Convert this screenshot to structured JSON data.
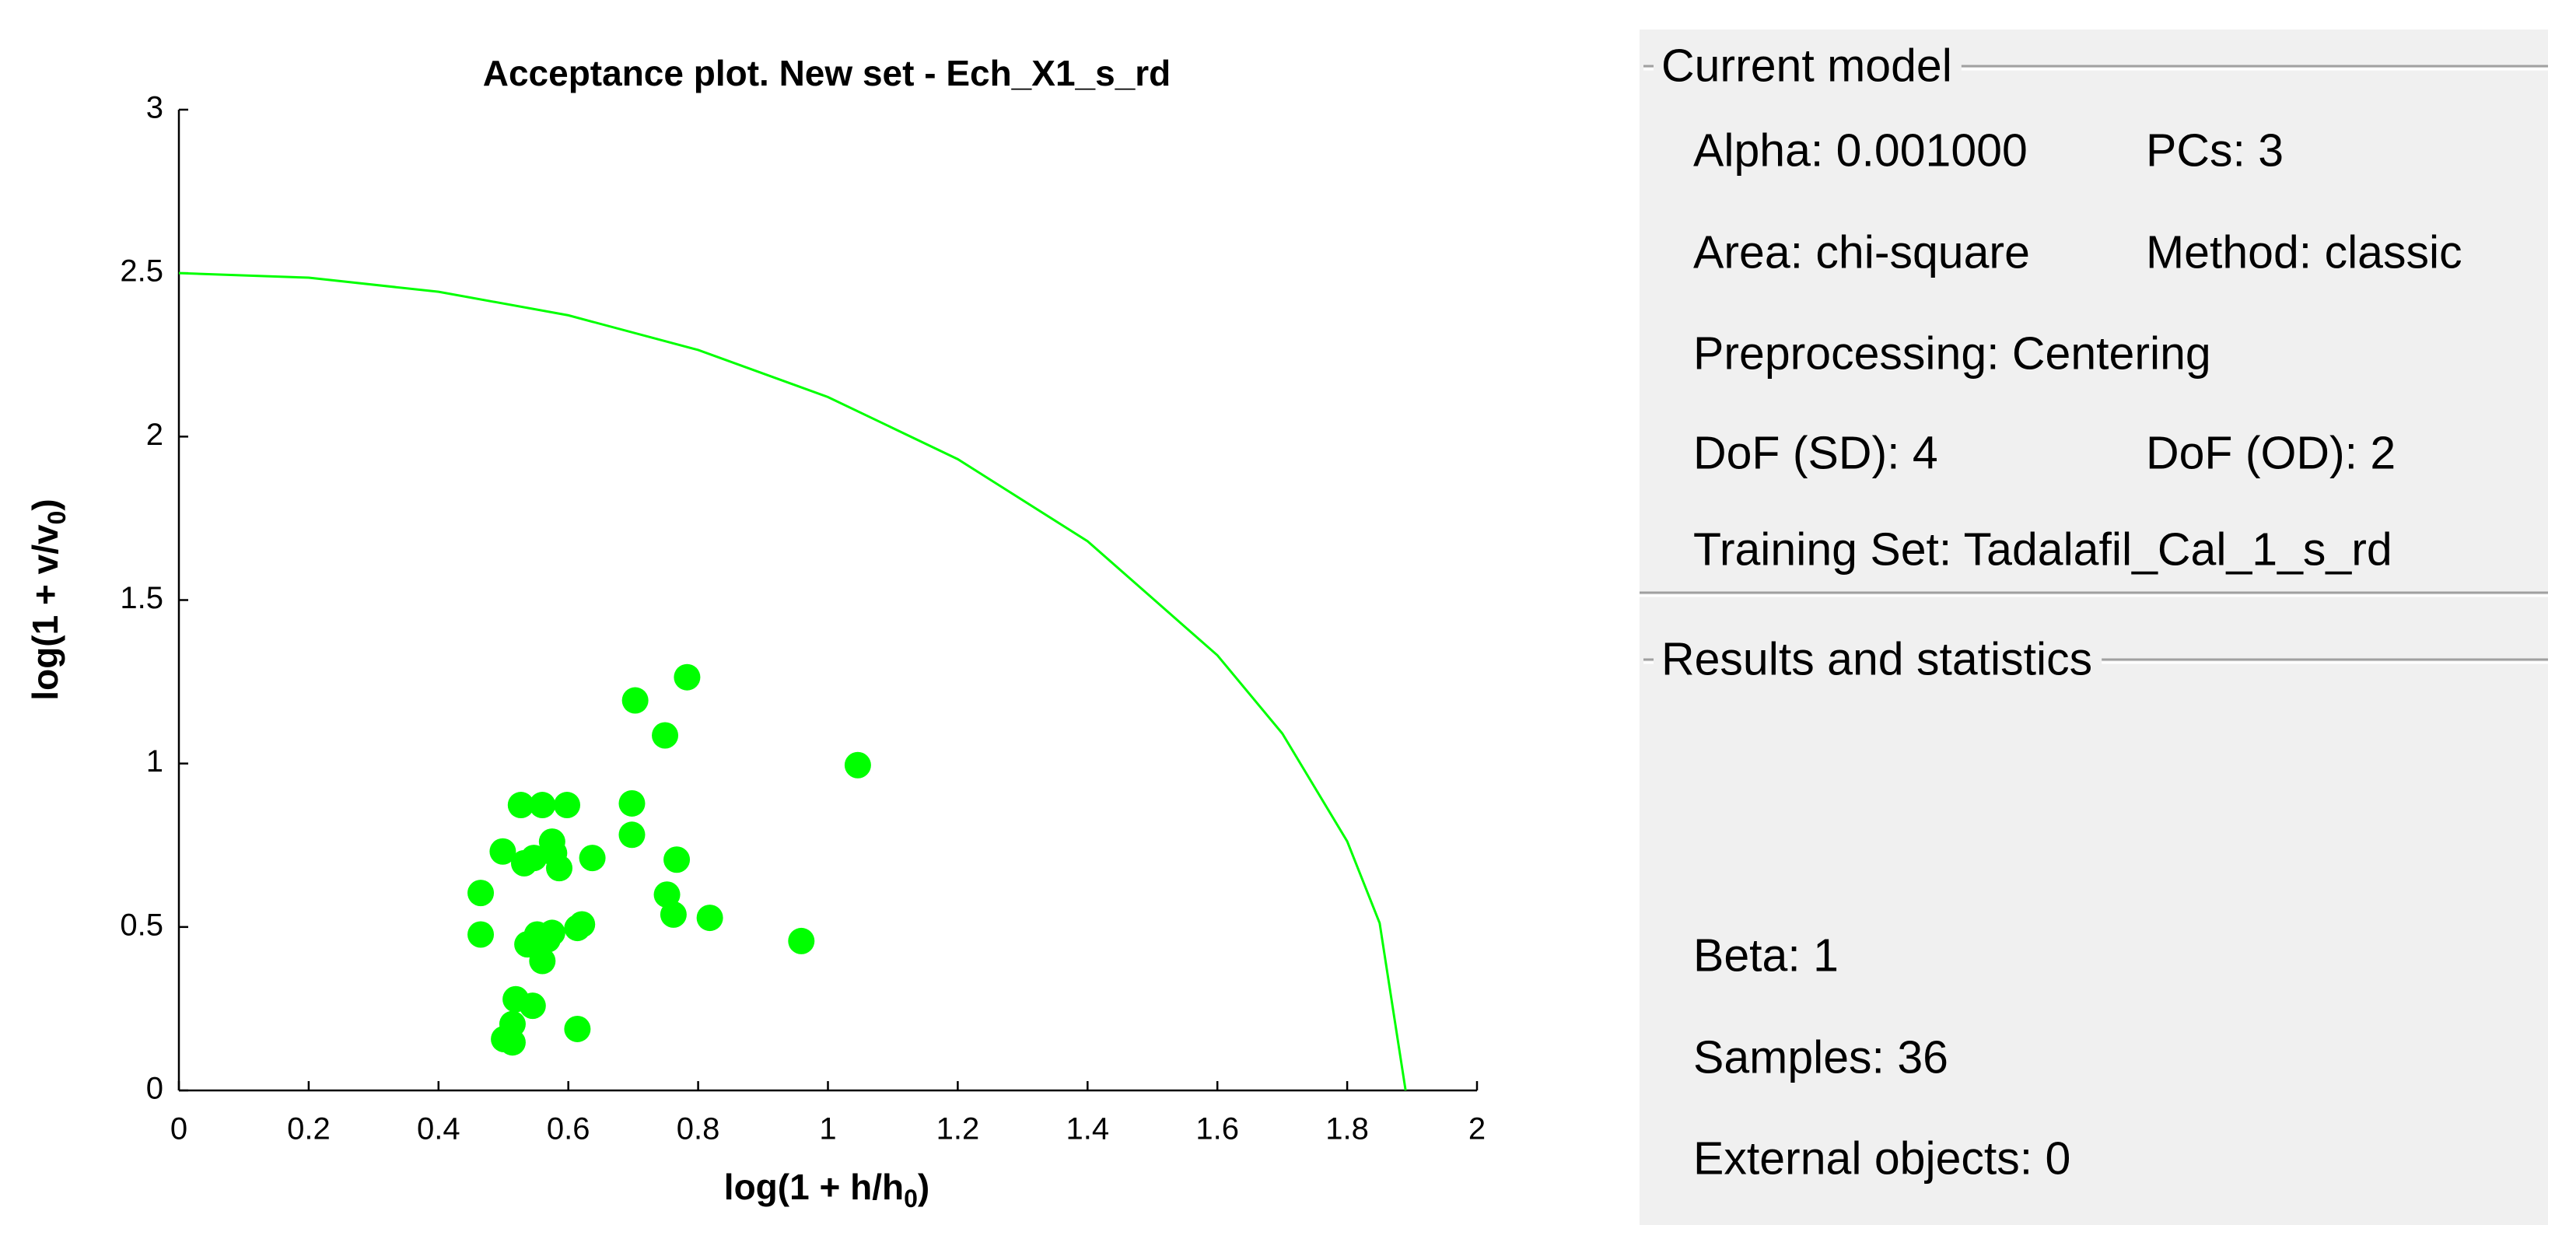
{
  "chart_data": {
    "type": "scatter",
    "title": "Acceptance plot. New set - Ech_X1_s_rd",
    "xlabel": [
      "log(1 + h/h",
      "0",
      ")"
    ],
    "ylabel": [
      "log(1 + v/v",
      "0",
      ")"
    ],
    "xlim": [
      0,
      2
    ],
    "xticks": [
      0,
      0.2,
      0.4,
      0.6,
      0.8,
      1,
      1.2,
      1.4,
      1.6,
      1.8,
      2
    ],
    "ylim": [
      0,
      3
    ],
    "yticks": [
      0,
      0.5,
      1,
      1.5,
      2,
      2.5,
      3
    ],
    "series": [
      {
        "type": "scatter",
        "color": "#00ff00",
        "x": [
          0.465,
          0.465,
          0.499,
          0.527,
          0.56,
          0.598,
          0.532,
          0.547,
          0.575,
          0.578,
          0.586,
          0.637,
          0.537,
          0.568,
          0.56,
          0.575,
          0.614,
          0.621,
          0.519,
          0.545,
          0.514,
          0.501,
          0.514,
          0.614,
          0.703,
          0.783,
          0.749,
          0.698,
          0.698,
          0.767,
          0.752,
          0.762,
          0.818,
          0.959,
          1.046,
          0.552
        ],
        "values": [
          0.604,
          0.477,
          0.731,
          0.873,
          0.873,
          0.873,
          0.695,
          0.711,
          0.761,
          0.726,
          0.68,
          0.711,
          0.447,
          0.462,
          0.396,
          0.482,
          0.497,
          0.508,
          0.279,
          0.259,
          0.203,
          0.157,
          0.147,
          0.188,
          1.193,
          1.264,
          1.086,
          0.878,
          0.782,
          0.706,
          0.599,
          0.538,
          0.528,
          0.457,
          0.995,
          0.477
        ]
      },
      {
        "type": "line",
        "color": "#00ff00",
        "x": [
          0,
          0.2,
          0.4,
          0.6,
          0.8,
          1,
          1.2,
          1.4,
          1.6,
          1.7,
          1.8,
          1.85,
          1.89
        ],
        "values": [
          2.5,
          2.486,
          2.443,
          2.371,
          2.265,
          2.121,
          1.931,
          1.68,
          1.331,
          1.092,
          0.762,
          0.512,
          0
        ]
      }
    ]
  },
  "panel": {
    "current_model": {
      "title": "Current model",
      "rows": [
        [
          "Alpha: 0.001000",
          "PCs: 3"
        ],
        [
          "Area: chi-square",
          "Method: classic"
        ],
        [
          "Preprocessing: Centering"
        ],
        [
          "DoF (SD): 4",
          "DoF (OD): 2"
        ],
        [
          "Training Set: Tadalafil_Cal_1_s_rd"
        ]
      ]
    },
    "results": {
      "title": "Results and statistics",
      "rows": [
        [
          "Beta: 1"
        ],
        [
          "Samples: 36"
        ],
        [
          "External objects: 0"
        ]
      ]
    }
  }
}
